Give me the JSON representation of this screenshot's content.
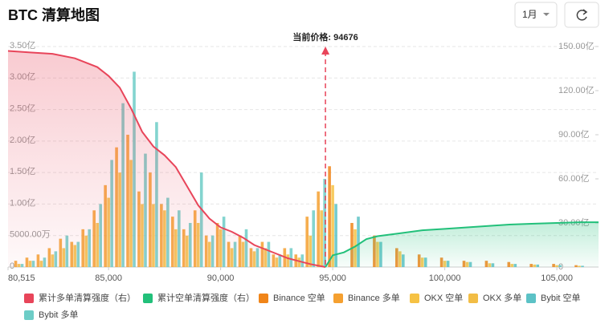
{
  "chart_data": {
    "type": "bar",
    "title": "BTC 清算地图",
    "range_selector": "1月",
    "current_price": {
      "label": "当前价格:",
      "value": 94676
    },
    "xlim": [
      80515,
      106860
    ],
    "xticks": [
      {
        "value": 80515,
        "label": "80,515"
      },
      {
        "value": 85000,
        "label": "85,000"
      },
      {
        "value": 90000,
        "label": "90,000"
      },
      {
        "value": 95000,
        "label": "95,000"
      },
      {
        "value": 100000,
        "label": "100,000"
      },
      {
        "value": 105000,
        "label": "105,000"
      }
    ],
    "ylim": [
      0,
      3.5
    ],
    "yticks": [
      0,
      {
        "value": 0.5,
        "label": "5000.00万"
      },
      {
        "value": 1,
        "label": "1.00亿"
      },
      {
        "value": 1.5,
        "label": "1.50亿"
      },
      {
        "value": 2,
        "label": "2.00亿"
      },
      {
        "value": 2.5,
        "label": "2.50亿"
      },
      {
        "value": 3,
        "label": "3.00亿"
      },
      {
        "value": 3.5,
        "label": "3.50亿"
      }
    ],
    "y2lim": [
      0,
      150
    ],
    "y2ticks": [
      0,
      {
        "value": 30,
        "label": "30.00亿"
      },
      {
        "value": 60,
        "label": "60.00亿"
      },
      {
        "value": 90,
        "label": "90.00亿"
      },
      {
        "value": 120,
        "label": "120.00亿"
      },
      {
        "value": 150,
        "label": "150.00亿"
      }
    ],
    "grid": true,
    "series": [
      {
        "name": "累计多单清算强度（右）",
        "type": "area",
        "axis": "y2",
        "color": "#e8455a",
        "x": [
          80515,
          81500,
          82500,
          83500,
          84500,
          85000,
          85500,
          86000,
          86500,
          87000,
          87500,
          88000,
          88500,
          89000,
          89500,
          90000,
          90500,
          91000,
          91500,
          92000,
          92500,
          93000,
          93500,
          94000,
          94676
        ],
        "values": [
          147,
          146,
          145,
          142,
          136,
          130,
          122,
          108,
          92,
          82,
          76,
          68,
          55,
          42,
          33,
          27,
          24,
          20,
          15,
          12,
          9,
          6,
          4,
          2,
          0
        ]
      },
      {
        "name": "累计空单清算强度（右）",
        "type": "area",
        "axis": "y2",
        "color": "#22c07a",
        "x": [
          94676,
          95000,
          95500,
          96000,
          96500,
          97000,
          98000,
          99000,
          100000,
          101000,
          102000,
          103000,
          104000,
          105000,
          106000,
          106860
        ],
        "values": [
          0,
          8,
          10,
          14,
          19,
          21,
          23,
          25,
          26,
          27,
          28,
          29,
          29.5,
          30,
          30.5,
          30.5
        ]
      },
      {
        "name": "Binance 空单",
        "type": "bar",
        "color": "#f08519",
        "x": [
          95000,
          96000,
          97000,
          98000,
          99000,
          100000,
          101000,
          102000,
          103000,
          104000,
          105000,
          106000
        ],
        "values": [
          1.6,
          0.7,
          0.5,
          0.3,
          0.2,
          0.15,
          0.1,
          0.1,
          0.08,
          0.05,
          0.05,
          0.03
        ]
      },
      {
        "name": "Binance 多单",
        "type": "bar",
        "color": "#f5a030",
        "x": [
          81000,
          81500,
          82000,
          82500,
          83000,
          83500,
          84000,
          84500,
          85000,
          85500,
          86000,
          86500,
          87000,
          87500,
          88000,
          88500,
          89000,
          89500,
          90000,
          90500,
          91000,
          91500,
          92000,
          92500,
          93000,
          93500,
          94000,
          94500
        ],
        "values": [
          0.1,
          0.15,
          0.2,
          0.3,
          0.45,
          0.4,
          0.6,
          0.9,
          1.3,
          1.9,
          2.1,
          1.2,
          1.5,
          1.0,
          0.8,
          0.6,
          0.9,
          0.5,
          0.7,
          0.4,
          0.5,
          0.3,
          0.4,
          0.2,
          0.3,
          0.2,
          0.8,
          1.2
        ]
      },
      {
        "name": "OKX 空单",
        "type": "bar",
        "color": "#f6c244",
        "x": [
          95000,
          96000,
          97000,
          98000,
          99000,
          100000,
          101000,
          102000,
          103000,
          104000,
          105000,
          106000
        ],
        "values": [
          1.3,
          0.6,
          0.4,
          0.25,
          0.15,
          0.1,
          0.08,
          0.06,
          0.05,
          0.04,
          0.03,
          0.02
        ]
      },
      {
        "name": "OKX 多单",
        "type": "bar",
        "color": "#f2bd45",
        "x": [
          81000,
          81500,
          82000,
          82500,
          83000,
          83500,
          84000,
          84500,
          85000,
          85500,
          86000,
          86500,
          87000,
          87500,
          88000,
          88500,
          89000,
          89500,
          90000,
          90500,
          91000,
          91500,
          92000,
          92500,
          93000,
          93500,
          94000,
          94500
        ],
        "values": [
          0.05,
          0.1,
          0.1,
          0.2,
          0.3,
          0.35,
          0.5,
          0.7,
          1.1,
          1.5,
          1.7,
          1.0,
          1.0,
          0.9,
          0.6,
          0.5,
          0.7,
          0.4,
          0.6,
          0.3,
          0.4,
          0.25,
          0.3,
          0.15,
          0.2,
          0.15,
          0.5,
          0.9
        ]
      },
      {
        "name": "Bybit 空单",
        "type": "bar",
        "color": "#5cc2c6",
        "x": [
          95000,
          96000,
          97000,
          98000,
          99000,
          100000,
          101000,
          102000,
          103000,
          104000,
          105000,
          106000
        ],
        "values": [
          1.0,
          0.8,
          0.4,
          0.2,
          0.15,
          0.1,
          0.08,
          0.06,
          0.05,
          0.04,
          0.03,
          0.02
        ]
      },
      {
        "name": "Bybit 多单",
        "type": "bar",
        "color": "#6dcdc7",
        "x": [
          81000,
          81500,
          82000,
          82500,
          83000,
          83500,
          84000,
          84500,
          85000,
          85500,
          86000,
          86500,
          87000,
          87500,
          88000,
          88500,
          89000,
          89500,
          90000,
          90500,
          91000,
          91500,
          92000,
          92500,
          93000,
          93500,
          94000,
          94500
        ],
        "values": [
          0.05,
          0.1,
          0.15,
          0.25,
          0.5,
          0.4,
          0.6,
          1.0,
          1.7,
          2.6,
          3.1,
          1.8,
          2.3,
          1.1,
          0.9,
          0.7,
          1.5,
          0.5,
          0.8,
          0.4,
          0.6,
          0.3,
          0.4,
          0.2,
          0.3,
          0.2,
          0.9,
          1.4
        ]
      }
    ]
  }
}
